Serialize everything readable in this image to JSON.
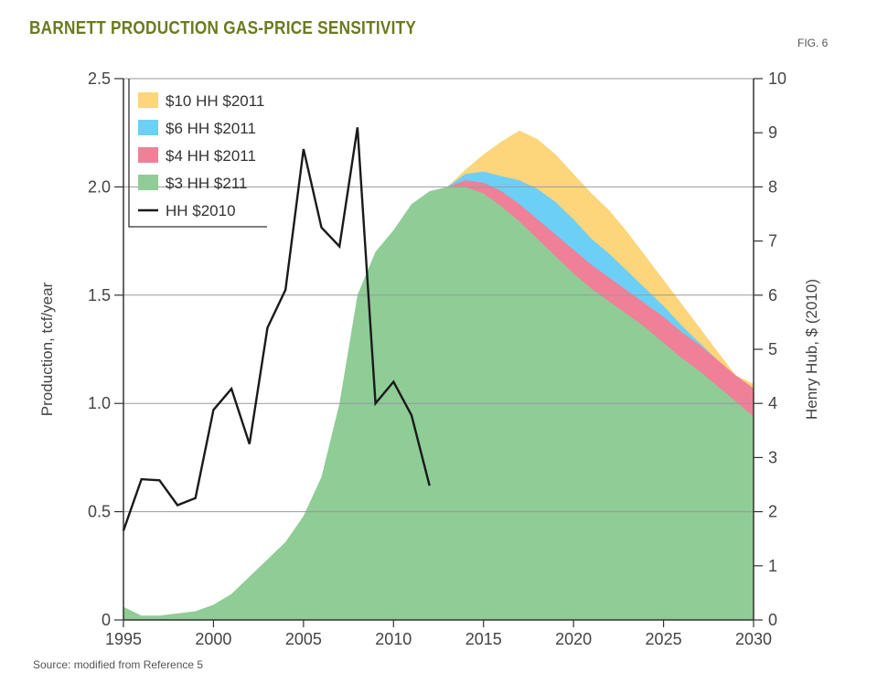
{
  "header": {
    "title": "BARNETT PRODUCTION GAS-PRICE SENSITIVITY",
    "fig_label": "FIG. 6"
  },
  "footer": {
    "source": "Source: modified from Reference 5"
  },
  "chart_data": {
    "type": "area",
    "title": "BARNETT PRODUCTION GAS-PRICE SENSITIVITY",
    "ylabel": "Production, tcf/year",
    "y2label": "Henry Hub, $ (2010)",
    "xlim": [
      1995,
      2030
    ],
    "ylim": [
      0,
      2.5
    ],
    "y2lim": [
      0,
      10
    ],
    "grid": "horizontal",
    "legend_position": "top-left",
    "x_ticks": [
      "1995",
      "2000",
      "2005",
      "2010",
      "2015",
      "2020",
      "2025",
      "2030"
    ],
    "y_ticks": [
      "0",
      "0.5",
      "1.0",
      "1.5",
      "2.0",
      "2.5"
    ],
    "y2_ticks": [
      "0",
      "1",
      "2",
      "3",
      "4",
      "5",
      "6",
      "7",
      "8",
      "9",
      "10"
    ],
    "colors": {
      "s10": "#fdd57a",
      "s6": "#6ccff6",
      "s4": "#ef8098",
      "s3": "#8fcc96",
      "hh": "#1a1a1a"
    },
    "series": [
      {
        "name": "$10 HH $2011",
        "x": [
          2013,
          2014,
          2015,
          2016,
          2017,
          2018,
          2019,
          2020,
          2021,
          2022,
          2023,
          2024,
          2025,
          2026,
          2027,
          2028,
          2029,
          2030
        ],
        "values": [
          2.0,
          2.08,
          2.15,
          2.21,
          2.26,
          2.22,
          2.15,
          2.06,
          1.97,
          1.89,
          1.79,
          1.68,
          1.57,
          1.46,
          1.35,
          1.24,
          1.13,
          1.09
        ]
      },
      {
        "name": "$6 HH $2011",
        "x": [
          2013,
          2014,
          2015,
          2016,
          2017,
          2018,
          2019,
          2020,
          2021,
          2022,
          2023,
          2024,
          2025,
          2026,
          2027,
          2028,
          2029,
          2030
        ],
        "values": [
          2.0,
          2.06,
          2.07,
          2.05,
          2.03,
          1.99,
          1.93,
          1.85,
          1.76,
          1.69,
          1.61,
          1.53,
          1.45,
          1.36,
          1.28,
          1.2,
          1.12,
          1.04
        ]
      },
      {
        "name": "$4 HH $2011",
        "x": [
          2013,
          2014,
          2015,
          2016,
          2017,
          2018,
          2019,
          2020,
          2021,
          2022,
          2023,
          2024,
          2025,
          2026,
          2027,
          2028,
          2029,
          2030
        ],
        "values": [
          2.0,
          2.03,
          2.02,
          1.98,
          1.92,
          1.85,
          1.78,
          1.71,
          1.64,
          1.58,
          1.52,
          1.46,
          1.4,
          1.33,
          1.27,
          1.2,
          1.13,
          1.07
        ]
      },
      {
        "name": "$3 HH $211",
        "x": [
          1995,
          1996,
          1997,
          1998,
          1999,
          2000,
          2001,
          2002,
          2003,
          2004,
          2005,
          2006,
          2007,
          2008,
          2009,
          2010,
          2011,
          2012,
          2013,
          2014,
          2015,
          2016,
          2017,
          2018,
          2019,
          2020,
          2021,
          2022,
          2023,
          2024,
          2025,
          2026,
          2027,
          2028,
          2029,
          2030
        ],
        "values": [
          0.06,
          0.02,
          0.02,
          0.03,
          0.04,
          0.07,
          0.12,
          0.2,
          0.28,
          0.36,
          0.48,
          0.66,
          1.0,
          1.5,
          1.7,
          1.8,
          1.92,
          1.98,
          2.0,
          2.0,
          1.97,
          1.91,
          1.84,
          1.76,
          1.68,
          1.6,
          1.53,
          1.47,
          1.41,
          1.35,
          1.28,
          1.21,
          1.15,
          1.08,
          1.01,
          0.94
        ]
      },
      {
        "name": "HH $2010",
        "axis": "right",
        "x": [
          1995,
          1996,
          1997,
          1998,
          1999,
          2000,
          2001,
          2002,
          2003,
          2004,
          2005,
          2006,
          2007,
          2008,
          2009,
          2010,
          2011,
          2012
        ],
        "values": [
          1.65,
          2.6,
          2.58,
          2.12,
          2.25,
          3.88,
          4.27,
          3.25,
          5.4,
          6.1,
          8.7,
          7.25,
          6.9,
          9.1,
          4.0,
          4.4,
          3.78,
          2.48
        ]
      }
    ]
  }
}
